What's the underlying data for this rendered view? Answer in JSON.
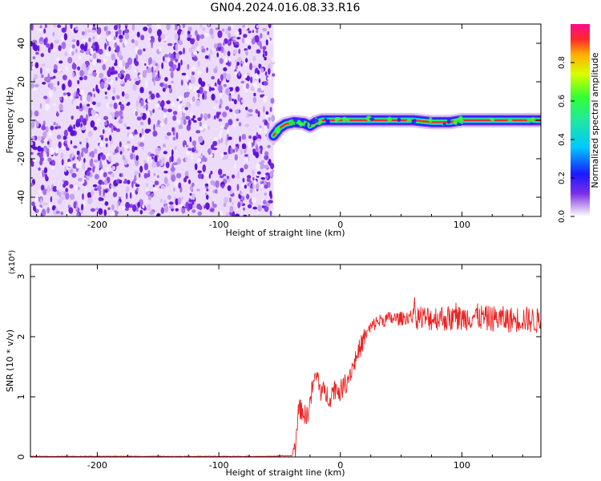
{
  "title": "GN04.2024.016.08.33.R16",
  "chart_data": [
    {
      "type": "heatmap",
      "xlabel": "Height of straight line (km)",
      "ylabel": "Frequency (Hz)",
      "xlim": [
        -255,
        165
      ],
      "ylim": [
        -50,
        50
      ],
      "xticks": [
        -200,
        -100,
        0,
        100
      ],
      "yticks": [
        -40,
        -20,
        0,
        20,
        40
      ],
      "noise_region_x": [
        -255,
        -55
      ],
      "trace": [
        {
          "x": -55,
          "y": -8
        },
        {
          "x": -50,
          "y": -4
        },
        {
          "x": -45,
          "y": -2
        },
        {
          "x": -38,
          "y": -1
        },
        {
          "x": -30,
          "y": -1.5
        },
        {
          "x": -25,
          "y": -3
        },
        {
          "x": -20,
          "y": -1
        },
        {
          "x": -15,
          "y": 0
        },
        {
          "x": 0,
          "y": 0
        },
        {
          "x": 20,
          "y": 0
        },
        {
          "x": 40,
          "y": 0
        },
        {
          "x": 60,
          "y": 0
        },
        {
          "x": 75,
          "y": -1
        },
        {
          "x": 90,
          "y": -1
        },
        {
          "x": 100,
          "y": 0
        },
        {
          "x": 130,
          "y": 0
        },
        {
          "x": 165,
          "y": 0
        }
      ],
      "grid": false
    },
    {
      "type": "line",
      "xlabel": "Height of straight line (km)",
      "ylabel": "SNR (10 * v/v)",
      "multiplier_label": "(x10⁴)",
      "xlim": [
        -255,
        165
      ],
      "ylim": [
        0,
        3.2
      ],
      "xticks": [
        -200,
        -100,
        0,
        100
      ],
      "yticks": [
        0,
        1,
        2,
        3
      ],
      "series": [
        {
          "color": "#ee2222",
          "points": [
            [
              -255,
              0.01
            ],
            [
              -200,
              0.01
            ],
            [
              -150,
              0.01
            ],
            [
              -100,
              0.01
            ],
            [
              -60,
              0.01
            ],
            [
              -40,
              0.02
            ],
            [
              -37,
              0.15
            ],
            [
              -35,
              0.75
            ],
            [
              -32,
              0.8
            ],
            [
              -28,
              0.65
            ],
            [
              -25,
              0.9
            ],
            [
              -22,
              1.25
            ],
            [
              -19,
              1.35
            ],
            [
              -16,
              1.1
            ],
            [
              -12,
              1.05
            ],
            [
              -8,
              1.0
            ],
            [
              -5,
              1.15
            ],
            [
              0,
              1.1
            ],
            [
              5,
              1.25
            ],
            [
              10,
              1.5
            ],
            [
              15,
              1.75
            ],
            [
              20,
              2.0
            ],
            [
              25,
              2.15
            ],
            [
              30,
              2.25
            ],
            [
              40,
              2.3
            ],
            [
              50,
              2.3
            ],
            [
              60,
              2.35
            ],
            [
              70,
              2.3
            ],
            [
              80,
              2.32
            ],
            [
              90,
              2.3
            ],
            [
              100,
              2.3
            ],
            [
              110,
              2.35
            ],
            [
              120,
              2.3
            ],
            [
              130,
              2.3
            ],
            [
              140,
              2.28
            ],
            [
              150,
              2.3
            ],
            [
              165,
              2.25
            ]
          ]
        }
      ],
      "grid": false
    }
  ],
  "colorbar": {
    "label": "Normalized spectral amplitude",
    "ticks": [
      "0.0",
      "0.2",
      "0.4",
      "0.6",
      "0.8"
    ],
    "range": [
      0,
      1
    ]
  }
}
